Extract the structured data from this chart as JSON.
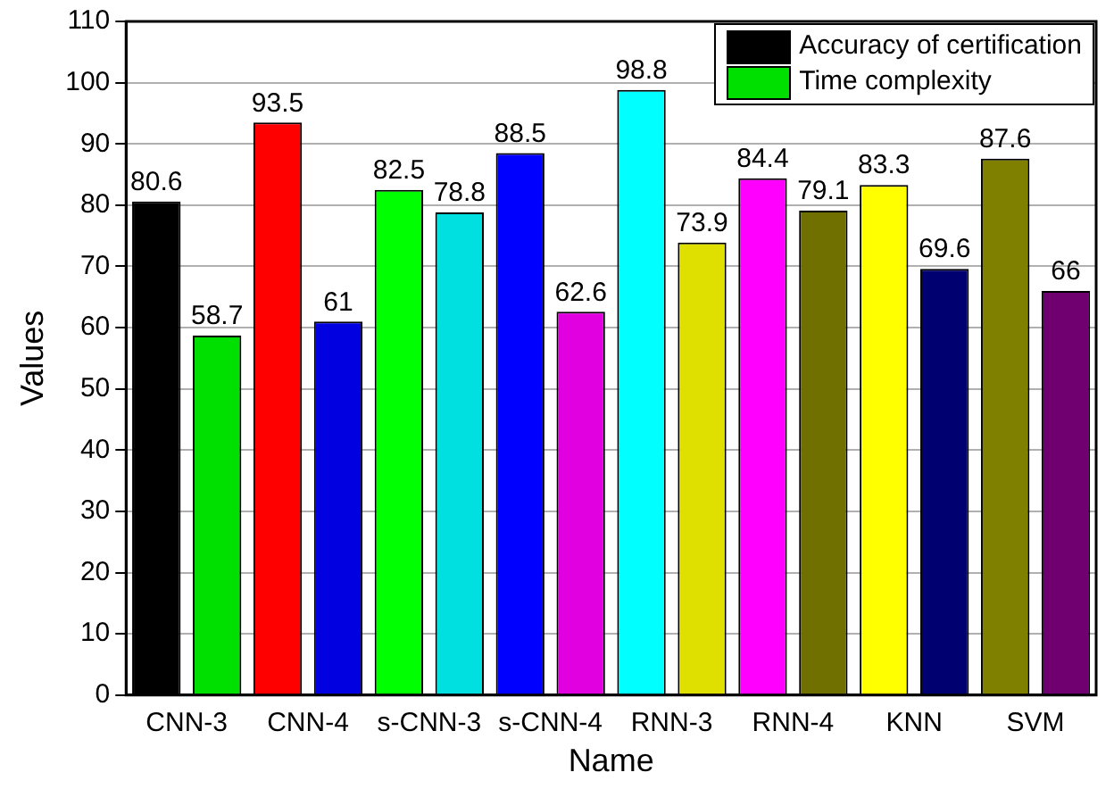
{
  "chart_data": {
    "type": "bar",
    "xlabel": "Name",
    "ylabel": "Values",
    "categories": [
      "CNN-3",
      "CNN-4",
      "s-CNN-3",
      "s-CNN-4",
      "RNN-3",
      "RNN-4",
      "KNN",
      "SVM"
    ],
    "series": [
      {
        "name": "Accuracy of certification",
        "color": "#000000",
        "colors": [
          "#000000",
          "#ff0000",
          "#00ff00",
          "#0000ff",
          "#00ffff",
          "#ff00ff",
          "#ffff00",
          "#808000"
        ],
        "values": [
          80.6,
          93.5,
          82.5,
          88.5,
          98.8,
          84.4,
          83.3,
          87.6
        ]
      },
      {
        "name": "Time complexity",
        "color": "#00e000",
        "colors": [
          "#00e000",
          "#0000e0",
          "#00e0e0",
          "#e000e0",
          "#e0e000",
          "#707000",
          "#000070",
          "#700070"
        ],
        "values": [
          58.7,
          61,
          78.8,
          62.6,
          73.9,
          79.1,
          69.6,
          66
        ]
      }
    ],
    "ylim": [
      0,
      110
    ],
    "yticks": [
      0,
      10,
      20,
      30,
      40,
      50,
      60,
      70,
      80,
      90,
      100,
      110
    ],
    "grid": "y",
    "legend": "top right",
    "data_labels": true
  }
}
